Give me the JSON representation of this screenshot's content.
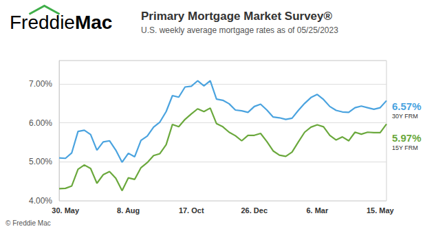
{
  "chart_data": {
    "type": "line",
    "logo": [
      "Freddie",
      "Mac"
    ],
    "title": "Primary Mortgage Market Survey®",
    "subtitle": "U.S. weekly average mortgage rates as of 05/25/2023",
    "source": "© Freddie Mac",
    "categories": [
      null,
      "30. May",
      null,
      null,
      null,
      null,
      null,
      null,
      null,
      null,
      null,
      "8. Aug",
      null,
      null,
      null,
      null,
      null,
      null,
      null,
      null,
      null,
      "17. Oct",
      null,
      null,
      null,
      null,
      null,
      null,
      null,
      null,
      null,
      "26. Dec",
      null,
      null,
      null,
      null,
      null,
      null,
      null,
      null,
      null,
      "6. Mar",
      null,
      null,
      null,
      null,
      null,
      null,
      null,
      null,
      null,
      "15. May",
      null
    ],
    "series": [
      {
        "name": "30Y FRM",
        "label": "6.57%",
        "color": "#4aa3df",
        "values": [
          5.1,
          5.09,
          5.23,
          5.78,
          5.81,
          5.7,
          5.3,
          5.51,
          5.54,
          5.3,
          4.99,
          5.22,
          5.13,
          5.55,
          5.66,
          5.89,
          6.02,
          6.29,
          6.7,
          6.66,
          6.92,
          6.94,
          7.08,
          6.95,
          7.08,
          6.61,
          6.58,
          6.49,
          6.33,
          6.31,
          6.27,
          6.42,
          6.48,
          6.33,
          6.15,
          6.13,
          6.09,
          6.12,
          6.32,
          6.5,
          6.65,
          6.73,
          6.6,
          6.42,
          6.32,
          6.28,
          6.27,
          6.39,
          6.43,
          6.39,
          6.35,
          6.39,
          6.57
        ]
      },
      {
        "name": "15Y FRM",
        "label": "5.97%",
        "color": "#6aa83c",
        "values": [
          4.31,
          4.32,
          4.38,
          4.81,
          4.92,
          4.83,
          4.45,
          4.67,
          4.75,
          4.58,
          4.26,
          4.59,
          4.55,
          4.85,
          4.98,
          5.16,
          5.21,
          5.44,
          5.96,
          5.9,
          6.09,
          6.23,
          6.36,
          6.29,
          6.38,
          5.98,
          5.9,
          5.76,
          5.67,
          5.54,
          5.68,
          5.68,
          5.73,
          5.52,
          5.28,
          5.17,
          5.14,
          5.25,
          5.51,
          5.76,
          5.89,
          5.95,
          5.9,
          5.68,
          5.56,
          5.64,
          5.54,
          5.76,
          5.71,
          5.76,
          5.75,
          5.75,
          5.97
        ]
      }
    ],
    "ylim": [
      4,
      7.6
    ],
    "yticks": [
      {
        "value": 4,
        "label": "4.00%"
      },
      {
        "value": 5,
        "label": "5.00%"
      },
      {
        "value": 6,
        "label": "6.00%"
      },
      {
        "value": 7,
        "label": "7.00%"
      }
    ],
    "grid": true
  }
}
